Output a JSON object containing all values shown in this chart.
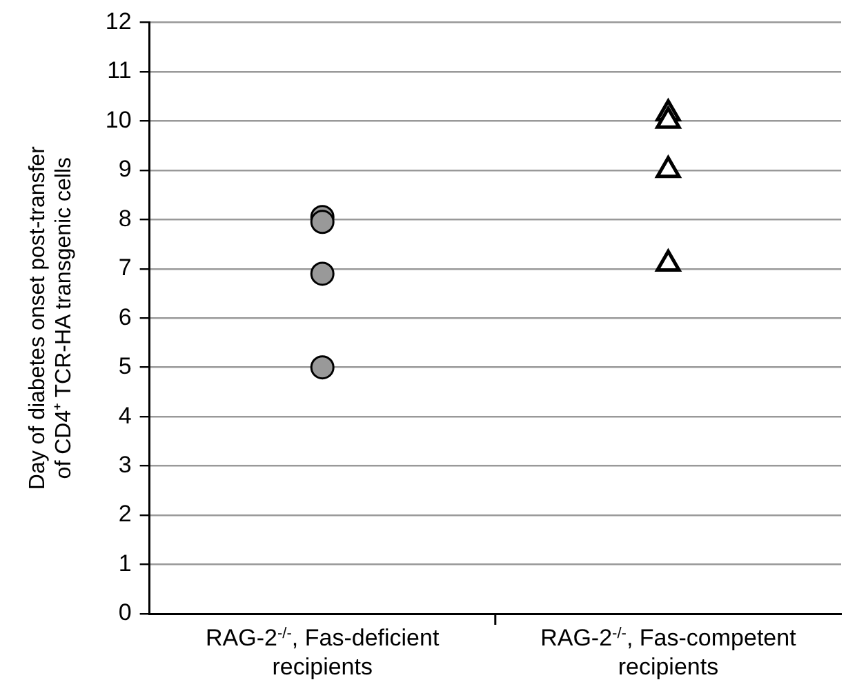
{
  "chart_data": {
    "type": "scatter",
    "ylabel": "Day of diabetes onset post-transfer of CD4⁺ TCR-HA transgenic cells",
    "categories": [
      "RAG-2$^{-/-}$, Fas-deficient recipients",
      "RAG-2$^{-/-}$, Fas-competent recipients"
    ],
    "series": [
      {
        "color": "#999999",
        "marker": "circle",
        "x": [
          "RAG-2$^{-/-}$, Fas-deficient recipients",
          "RAG-2$^{-/-}$, Fas-deficient recipients",
          "RAG-2$^{-/-}$, Fas-deficient recipients",
          "RAG-2$^{-/-}$, Fas-deficient recipients"
        ],
        "values": [
          8.05,
          7.95,
          6.9,
          5
        ]
      },
      {
        "color": "#ffffff",
        "marker": "triangle",
        "x": [
          "RAG-2$^{-/-}$, Fas-competent recipients",
          "RAG-2$^{-/-}$, Fas-competent recipients",
          "RAG-2$^{-/-}$, Fas-competent recipients",
          "RAG-2$^{-/-}$, Fas-competent recipients"
        ],
        "values": [
          10.15,
          10,
          9,
          7.1
        ]
      }
    ],
    "ylim": [
      0,
      12
    ],
    "yticks": [
      0,
      1,
      2,
      3,
      4,
      5,
      6,
      7,
      8,
      9,
      10,
      11,
      12
    ],
    "grid": "y"
  }
}
